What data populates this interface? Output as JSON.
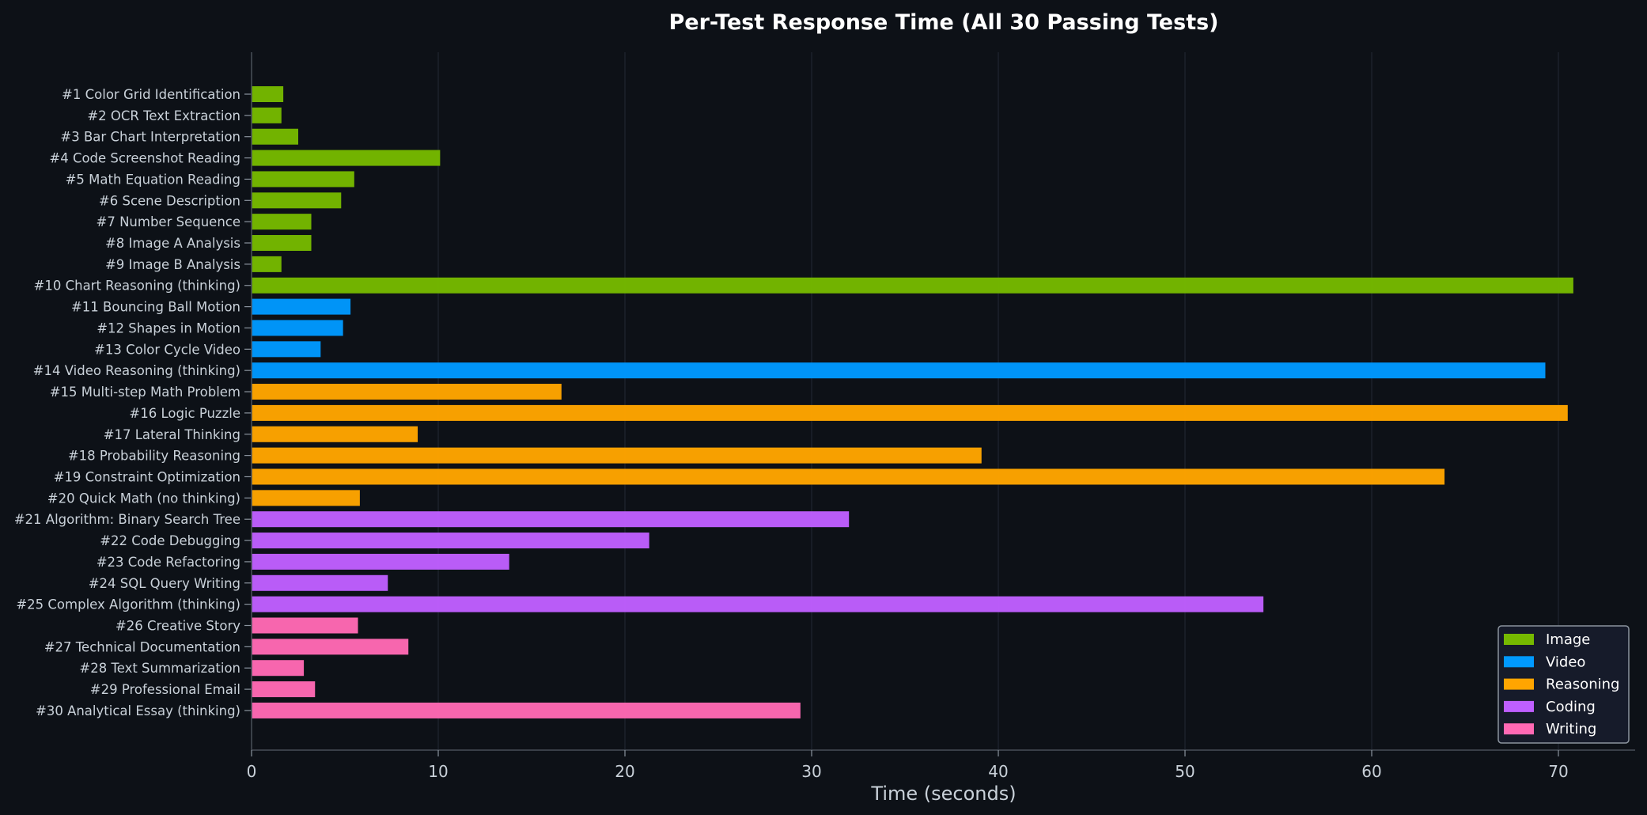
{
  "chart_data": {
    "type": "bar",
    "orientation": "horizontal",
    "title": "Per-Test Response Time (All 30 Passing Tests)",
    "xlabel": "Time (seconds)",
    "ylabel": "",
    "xlim": [
      0,
      74
    ],
    "xticks": [
      0,
      10,
      20,
      30,
      40,
      50,
      60,
      70
    ],
    "grid": "vertical",
    "legend_position": "bottom-right",
    "legend": [
      {
        "name": "Image",
        "color": "#76b900"
      },
      {
        "name": "Video",
        "color": "#0099ff"
      },
      {
        "name": "Reasoning",
        "color": "#ffa500"
      },
      {
        "name": "Coding",
        "color": "#bf5fff"
      },
      {
        "name": "Writing",
        "color": "#ff69b4"
      }
    ],
    "bars": [
      {
        "label": "#1 Color Grid Identification",
        "value": 1.7,
        "group": "Image"
      },
      {
        "label": "#2 OCR Text Extraction",
        "value": 1.6,
        "group": "Image"
      },
      {
        "label": "#3 Bar Chart Interpretation",
        "value": 2.5,
        "group": "Image"
      },
      {
        "label": "#4 Code Screenshot Reading",
        "value": 10.1,
        "group": "Image"
      },
      {
        "label": "#5 Math Equation Reading",
        "value": 5.5,
        "group": "Image"
      },
      {
        "label": "#6 Scene Description",
        "value": 4.8,
        "group": "Image"
      },
      {
        "label": "#7 Number Sequence",
        "value": 3.2,
        "group": "Image"
      },
      {
        "label": "#8 Image A Analysis",
        "value": 3.2,
        "group": "Image"
      },
      {
        "label": "#9 Image B Analysis",
        "value": 1.6,
        "group": "Image"
      },
      {
        "label": "#10 Chart Reasoning (thinking)",
        "value": 70.8,
        "group": "Image"
      },
      {
        "label": "#11 Bouncing Ball Motion",
        "value": 5.3,
        "group": "Video"
      },
      {
        "label": "#12 Shapes in Motion",
        "value": 4.9,
        "group": "Video"
      },
      {
        "label": "#13 Color Cycle Video",
        "value": 3.7,
        "group": "Video"
      },
      {
        "label": "#14 Video Reasoning (thinking)",
        "value": 69.3,
        "group": "Video"
      },
      {
        "label": "#15 Multi-step Math Problem",
        "value": 16.6,
        "group": "Reasoning"
      },
      {
        "label": "#16 Logic Puzzle",
        "value": 70.5,
        "group": "Reasoning"
      },
      {
        "label": "#17 Lateral Thinking",
        "value": 8.9,
        "group": "Reasoning"
      },
      {
        "label": "#18 Probability Reasoning",
        "value": 39.1,
        "group": "Reasoning"
      },
      {
        "label": "#19 Constraint Optimization",
        "value": 63.9,
        "group": "Reasoning"
      },
      {
        "label": "#20 Quick Math (no thinking)",
        "value": 5.8,
        "group": "Reasoning"
      },
      {
        "label": "#21 Algorithm: Binary Search Tree",
        "value": 32.0,
        "group": "Coding"
      },
      {
        "label": "#22 Code Debugging",
        "value": 21.3,
        "group": "Coding"
      },
      {
        "label": "#23 Code Refactoring",
        "value": 13.8,
        "group": "Coding"
      },
      {
        "label": "#24 SQL Query Writing",
        "value": 7.3,
        "group": "Coding"
      },
      {
        "label": "#25 Complex Algorithm (thinking)",
        "value": 54.2,
        "group": "Coding"
      },
      {
        "label": "#26 Creative Story",
        "value": 5.7,
        "group": "Writing"
      },
      {
        "label": "#27 Technical Documentation",
        "value": 8.4,
        "group": "Writing"
      },
      {
        "label": "#28 Text Summarization",
        "value": 2.8,
        "group": "Writing"
      },
      {
        "label": "#29 Professional Email",
        "value": 3.4,
        "group": "Writing"
      },
      {
        "label": "#30 Analytical Essay (thinking)",
        "value": 29.4,
        "group": "Writing"
      }
    ]
  }
}
